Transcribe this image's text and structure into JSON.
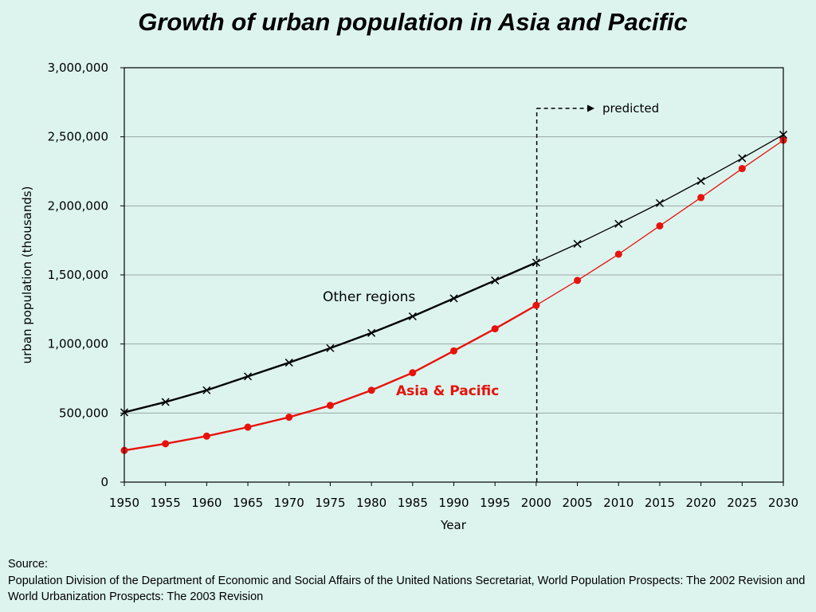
{
  "source": {
    "label": "Source:",
    "text": "Population Division of the Department of Economic and Social Affairs of the United Nations Secretariat, World Population Prospects: The 2002 Revision and World Urbanization Prospects: The 2003 Revision"
  },
  "chart_data": {
    "type": "line",
    "title": "Growth of urban population in Asia and Pacific",
    "xlabel": "Year",
    "ylabel": "urban population (thousands)",
    "x": [
      1950,
      1955,
      1960,
      1965,
      1970,
      1975,
      1980,
      1985,
      1990,
      1995,
      2000,
      2005,
      2010,
      2015,
      2020,
      2025,
      2030
    ],
    "ylim": [
      0,
      3000000
    ],
    "yticks": [
      0,
      500000,
      1000000,
      1500000,
      2000000,
      2500000,
      3000000
    ],
    "ytick_labels": [
      "0",
      "500,000",
      "1,000,000",
      "1,500,000",
      "2,000,000",
      "2,500,000",
      "3,000,000"
    ],
    "grid": "horizontal",
    "series": [
      {
        "name": "Other regions",
        "color": "#000000",
        "marker": "x",
        "values": [
          505000,
          580000,
          665000,
          765000,
          865000,
          970000,
          1080000,
          1200000,
          1330000,
          1460000,
          1590000,
          1725000,
          1870000,
          2020000,
          2180000,
          2345000,
          2515000
        ]
      },
      {
        "name": "Asia & Pacific",
        "color": "#e8120c",
        "marker": "circle",
        "values": [
          230000,
          278000,
          333000,
          398000,
          470000,
          555000,
          665000,
          792000,
          950000,
          1110000,
          1280000,
          1460000,
          1650000,
          1855000,
          2060000,
          2270000,
          2475000
        ]
      }
    ],
    "annotations": [
      {
        "text": "predicted",
        "x": 2000
      }
    ]
  }
}
